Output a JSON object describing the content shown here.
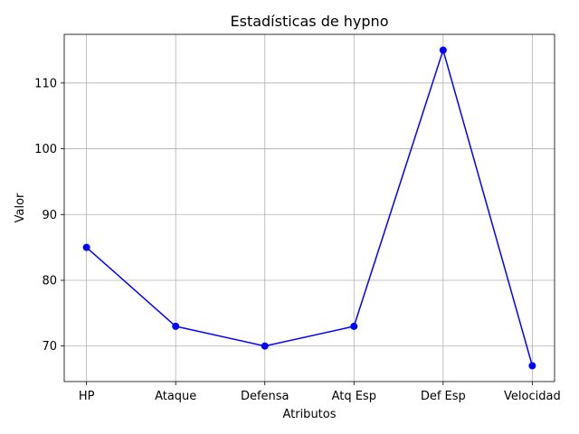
{
  "chart_data": {
    "type": "line",
    "title": "Estadísticas de hypno",
    "xlabel": "Atributos",
    "ylabel": "Valor",
    "categories": [
      "HP",
      "Ataque",
      "Defensa",
      "Atq Esp",
      "Def Esp",
      "Velocidad"
    ],
    "series": [
      {
        "values": [
          85,
          73,
          70,
          73,
          115,
          67
        ],
        "color": "#0000ff",
        "marker": "circle"
      }
    ],
    "ylim": [
      64.6,
      117.4
    ],
    "yticks": [
      70,
      80,
      90,
      100,
      110
    ],
    "grid": true,
    "grid_color": "#b0b0b0",
    "legend": "none"
  }
}
